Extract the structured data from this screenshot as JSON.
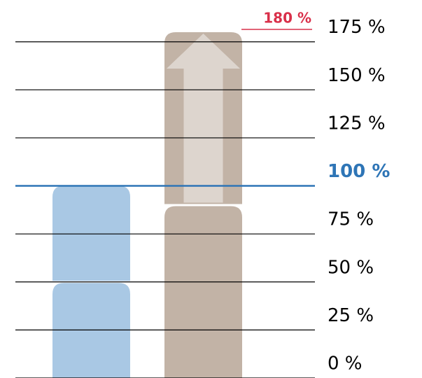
{
  "chart_data": {
    "type": "stacked-bar",
    "categories": [
      null,
      null
    ],
    "bar_colors": [
      "#a9c8e4",
      "#c2b3a6"
    ],
    "series": [
      {
        "values": [
          50,
          90
        ]
      },
      {
        "values": [
          50,
          90
        ]
      }
    ],
    "ylim": [
      0,
      180
    ],
    "yticks": [
      {
        "value": 0,
        "label": "0 %"
      },
      {
        "value": 25,
        "label": "25 %"
      },
      {
        "value": 50,
        "label": "50 %"
      },
      {
        "value": 75,
        "label": "75 %"
      },
      {
        "value": 100,
        "label": "100 %",
        "color": "#2e75b6"
      },
      {
        "value": 125,
        "label": "125 %"
      },
      {
        "value": 150,
        "label": "150 %"
      },
      {
        "value": 175,
        "label": "175 %"
      }
    ],
    "grid": true,
    "annotations": [
      {
        "value": 180,
        "label": "180 %",
        "color": "#d9304a"
      }
    ]
  }
}
